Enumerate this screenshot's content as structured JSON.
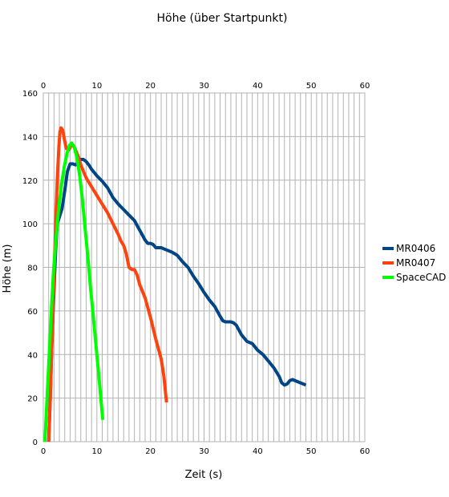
{
  "chart_data": {
    "type": "line",
    "title": "Höhe (über Startpunkt)",
    "xlabel": "Zeit (s)",
    "ylabel": "Höhe (m)",
    "xlim": [
      0,
      60
    ],
    "ylim": [
      0,
      160
    ],
    "x_ticks": [
      0,
      10,
      20,
      30,
      40,
      50,
      60
    ],
    "y_ticks": [
      0,
      20,
      40,
      60,
      80,
      100,
      120,
      140,
      160
    ],
    "x_minor_step": 1,
    "y_major_step": 20,
    "grid": true,
    "top_axis": true,
    "legend_position": "right",
    "series": [
      {
        "name": "MR0406",
        "color": "#004586",
        "points": [
          [
            1.0,
            0
          ],
          [
            1.3,
            20
          ],
          [
            1.6,
            45
          ],
          [
            2.0,
            70
          ],
          [
            2.3,
            88
          ],
          [
            2.6,
            100
          ],
          [
            3.0,
            103
          ],
          [
            3.5,
            107
          ],
          [
            4.0,
            115
          ],
          [
            4.5,
            124
          ],
          [
            5.0,
            127.5
          ],
          [
            5.5,
            127.5
          ],
          [
            6.0,
            127
          ],
          [
            6.5,
            128
          ],
          [
            7.0,
            129.5
          ],
          [
            7.5,
            129.5
          ],
          [
            8.0,
            128.5
          ],
          [
            8.5,
            127
          ],
          [
            9.0,
            125
          ],
          [
            9.5,
            123.5
          ],
          [
            10.0,
            122
          ],
          [
            11.0,
            119.5
          ],
          [
            12.0,
            116.5
          ],
          [
            13.0,
            112
          ],
          [
            14.0,
            109
          ],
          [
            15.0,
            106.5
          ],
          [
            16.0,
            104
          ],
          [
            17.0,
            101.5
          ],
          [
            18.0,
            97
          ],
          [
            19.0,
            92.5
          ],
          [
            19.5,
            91
          ],
          [
            20.0,
            91
          ],
          [
            20.5,
            90.5
          ],
          [
            21.0,
            89
          ],
          [
            22.0,
            89
          ],
          [
            23.0,
            88
          ],
          [
            24.0,
            87
          ],
          [
            25.0,
            85.5
          ],
          [
            26.0,
            82.5
          ],
          [
            27.0,
            80
          ],
          [
            28.0,
            76
          ],
          [
            29.0,
            72.5
          ],
          [
            30.0,
            68.5
          ],
          [
            31.0,
            65
          ],
          [
            32.0,
            62
          ],
          [
            33.0,
            57.5
          ],
          [
            33.5,
            55.5
          ],
          [
            34.0,
            55
          ],
          [
            35.0,
            55
          ],
          [
            35.5,
            54.5
          ],
          [
            36.0,
            53.5
          ],
          [
            37.0,
            49
          ],
          [
            38.0,
            46
          ],
          [
            39.0,
            45
          ],
          [
            40.0,
            42
          ],
          [
            41.0,
            40
          ],
          [
            42.0,
            37
          ],
          [
            43.0,
            34
          ],
          [
            44.0,
            30
          ],
          [
            44.5,
            27
          ],
          [
            45.0,
            26
          ],
          [
            45.5,
            26.5
          ],
          [
            46.0,
            28
          ],
          [
            46.5,
            28.5
          ],
          [
            47.0,
            28
          ],
          [
            48.0,
            27
          ],
          [
            49.0,
            26
          ]
        ]
      },
      {
        "name": "MR0407",
        "color": "#ff420e",
        "points": [
          [
            1.0,
            0
          ],
          [
            1.3,
            20
          ],
          [
            1.6,
            45
          ],
          [
            2.0,
            75
          ],
          [
            2.3,
            100
          ],
          [
            2.6,
            120
          ],
          [
            2.9,
            135
          ],
          [
            3.1,
            142
          ],
          [
            3.3,
            144
          ],
          [
            3.6,
            143
          ],
          [
            4.0,
            138
          ],
          [
            4.3,
            134.5
          ],
          [
            4.8,
            134
          ],
          [
            5.2,
            136
          ],
          [
            5.6,
            136
          ],
          [
            6.0,
            134
          ],
          [
            6.5,
            131
          ],
          [
            7.0,
            127
          ],
          [
            7.5,
            124
          ],
          [
            8.0,
            121
          ],
          [
            9.0,
            117
          ],
          [
            10.0,
            113
          ],
          [
            11.0,
            109
          ],
          [
            12.0,
            105
          ],
          [
            13.0,
            100
          ],
          [
            14.0,
            95
          ],
          [
            14.5,
            92
          ],
          [
            15.0,
            90
          ],
          [
            15.5,
            86
          ],
          [
            16.0,
            80
          ],
          [
            16.5,
            79
          ],
          [
            17.0,
            79
          ],
          [
            17.5,
            76.5
          ],
          [
            18.0,
            72
          ],
          [
            19.0,
            66
          ],
          [
            20.0,
            57
          ],
          [
            21.0,
            47
          ],
          [
            22.0,
            38
          ],
          [
            22.5,
            30
          ],
          [
            23.0,
            18
          ]
        ]
      },
      {
        "name": "SpaceCAD",
        "color": "#00ff00",
        "points": [
          [
            0.3,
            0
          ],
          [
            0.7,
            20
          ],
          [
            1.1,
            40
          ],
          [
            1.5,
            60
          ],
          [
            1.9,
            78
          ],
          [
            2.4,
            94
          ],
          [
            2.9,
            108
          ],
          [
            3.4,
            118
          ],
          [
            3.9,
            126
          ],
          [
            4.4,
            132
          ],
          [
            4.9,
            136
          ],
          [
            5.3,
            137
          ],
          [
            5.8,
            135
          ],
          [
            6.3,
            130
          ],
          [
            6.8,
            122
          ],
          [
            7.3,
            111
          ],
          [
            7.8,
            98
          ],
          [
            8.3,
            85
          ],
          [
            8.8,
            71
          ],
          [
            9.3,
            58
          ],
          [
            9.8,
            45
          ],
          [
            10.3,
            32
          ],
          [
            10.7,
            21
          ],
          [
            11.1,
            10
          ]
        ]
      }
    ]
  }
}
